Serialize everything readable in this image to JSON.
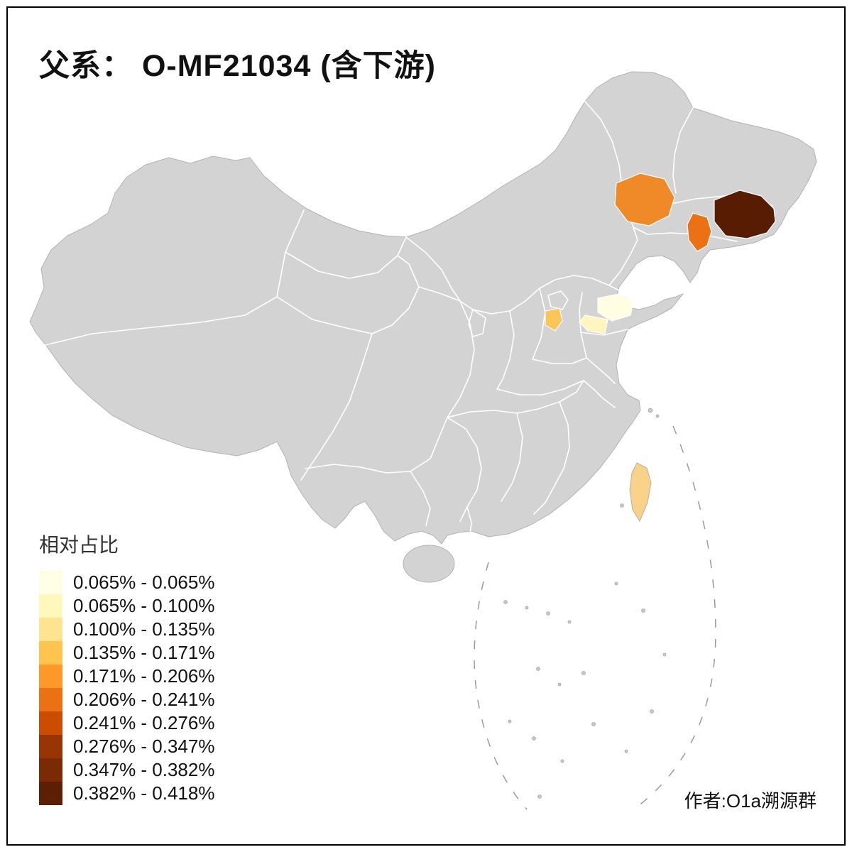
{
  "title": "父系： O-MF21034 (含下游)",
  "attribution": "作者:O1a溯源群",
  "legend": {
    "title": "相对占比",
    "entries": [
      {
        "label": "0.065% - 0.065%",
        "color": "#FFFFE5"
      },
      {
        "label": "0.065% - 0.100%",
        "color": "#FFF7BC"
      },
      {
        "label": "0.100% - 0.135%",
        "color": "#FEE391"
      },
      {
        "label": "0.135% - 0.171%",
        "color": "#FEC44F"
      },
      {
        "label": "0.171% - 0.206%",
        "color": "#FE9929"
      },
      {
        "label": "0.206% - 0.241%",
        "color": "#EC7014"
      },
      {
        "label": "0.241% - 0.276%",
        "color": "#CC4C02"
      },
      {
        "label": "0.276% - 0.347%",
        "color": "#993404"
      },
      {
        "label": "0.347% - 0.382%",
        "color": "#7A2A04"
      },
      {
        "label": "0.382% - 0.418%",
        "color": "#5C1F03"
      }
    ]
  },
  "map": {
    "base_fill": "#D3D3D3",
    "border_color": "#FFFFFF",
    "coast_stroke": "#B3B3B3",
    "sea_color": "#FFFFFF",
    "regions": [
      {
        "id": "ne-inland-orange",
        "bin": "0.206% - 0.241%",
        "color": "#F08A28"
      },
      {
        "id": "ne-dark-brown",
        "bin": "0.382% - 0.418%",
        "color": "#571C02"
      },
      {
        "id": "ne-coastal-orange",
        "bin": "0.206% - 0.241%",
        "color": "#EC7014"
      },
      {
        "id": "bohai-gold",
        "bin": "0.135% - 0.171%",
        "color": "#FDC558"
      },
      {
        "id": "shandong-cream",
        "bin": "0.065% - 0.065%",
        "color": "#FFFDE2"
      },
      {
        "id": "shandong-pale-yellow",
        "bin": "0.065% - 0.100%",
        "color": "#FFF5BE"
      },
      {
        "id": "taiwan",
        "bin": "0.100% - 0.135%",
        "color": "#F9D189"
      }
    ]
  },
  "chart_data": {
    "type": "heatmap",
    "title": "父系： O-MF21034 (含下游)",
    "legend_title": "相对占比",
    "bin_labels": [
      "0.065% - 0.065%",
      "0.065% - 0.100%",
      "0.100% - 0.135%",
      "0.135% - 0.171%",
      "0.171% - 0.206%",
      "0.206% - 0.241%",
      "0.241% - 0.276%",
      "0.276% - 0.347%",
      "0.347% - 0.382%",
      "0.382% - 0.418%"
    ],
    "bin_colors": [
      "#FFFFE5",
      "#FFF7BC",
      "#FEE391",
      "#FEC44F",
      "#FE9929",
      "#EC7014",
      "#CC4C02",
      "#993404",
      "#7A2A04",
      "#5C1F03"
    ],
    "highlighted_regions": [
      {
        "region": "northeast-inland",
        "bin": "0.206% - 0.241%"
      },
      {
        "region": "northeast-far-east",
        "bin": "0.382% - 0.418%"
      },
      {
        "region": "northeast-coastal",
        "bin": "0.206% - 0.241%"
      },
      {
        "region": "bohai-west-small",
        "bin": "0.135% - 0.171%"
      },
      {
        "region": "shandong-area-1",
        "bin": "0.065% - 0.065%"
      },
      {
        "region": "shandong-area-2",
        "bin": "0.065% - 0.100%"
      },
      {
        "region": "taiwan",
        "bin": "0.100% - 0.135%"
      }
    ]
  }
}
